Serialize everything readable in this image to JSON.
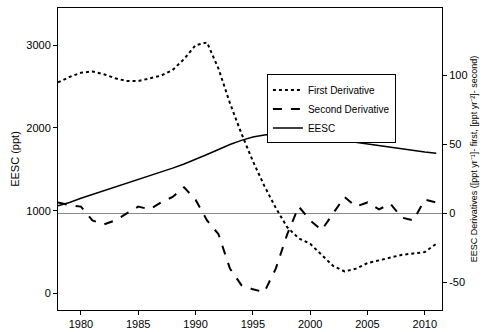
{
  "chart_data": {
    "type": "line",
    "x": [
      1978,
      1979,
      1980,
      1981,
      1982,
      1983,
      1984,
      1985,
      1986,
      1987,
      1988,
      1989,
      1990,
      1991,
      1992,
      1993,
      1994,
      1995,
      1996,
      1997,
      1998,
      1999,
      2000,
      2001,
      2002,
      2003,
      2004,
      2005,
      2006,
      2007,
      2008,
      2009,
      2010,
      2011
    ],
    "series": [
      {
        "name": "First Derivative",
        "color": "#000000",
        "line_style": "dot",
        "axis": "y2",
        "values": [
          95,
          99,
          102,
          103,
          101,
          98,
          96,
          96,
          98,
          100,
          104,
          112,
          122,
          124,
          105,
          80,
          58,
          38,
          20,
          4,
          -10,
          -18,
          -22,
          -30,
          -38,
          -42,
          -40,
          -36,
          -34,
          -32,
          -30,
          -29,
          -28,
          -22
        ]
      },
      {
        "name": "Second Derivative",
        "color": "#000000",
        "line_style": "dash",
        "axis": "y2",
        "values": [
          8,
          6,
          5,
          -5,
          -8,
          -5,
          0,
          5,
          3,
          8,
          12,
          19,
          10,
          -5,
          -15,
          -40,
          -52,
          -55,
          -57,
          -40,
          -15,
          5,
          -5,
          -12,
          0,
          12,
          5,
          8,
          3,
          7,
          -3,
          -5,
          10,
          8
        ]
      },
      {
        "name": "EESC",
        "color": "#000000",
        "line_style": "solid",
        "values": [
          1060,
          1100,
          1150,
          1195,
          1240,
          1285,
          1330,
          1375,
          1420,
          1465,
          1515,
          1565,
          1620,
          1680,
          1740,
          1800,
          1850,
          1890,
          1915,
          1930,
          1930,
          1920,
          1905,
          1885,
          1865,
          1845,
          1825,
          1805,
          1785,
          1765,
          1745,
          1725,
          1710,
          1695
        ]
      }
    ],
    "y_label": "EESC (ppt)",
    "y2_label": "EESC Derivatives ([ppt yr⁻¹]- first, [ppt yr⁻²]- second)",
    "xlim": [
      1978,
      2011.5
    ],
    "xticks": [
      1980,
      1985,
      1990,
      1995,
      2000,
      2005,
      2010
    ],
    "ylim": [
      -200,
      3450
    ],
    "yticks": [
      0,
      1000,
      2000,
      3000
    ],
    "y2lim": [
      -70,
      149
    ],
    "y2ticks": [
      -50,
      0,
      50,
      100
    ],
    "legend": "top right",
    "grid": false
  }
}
